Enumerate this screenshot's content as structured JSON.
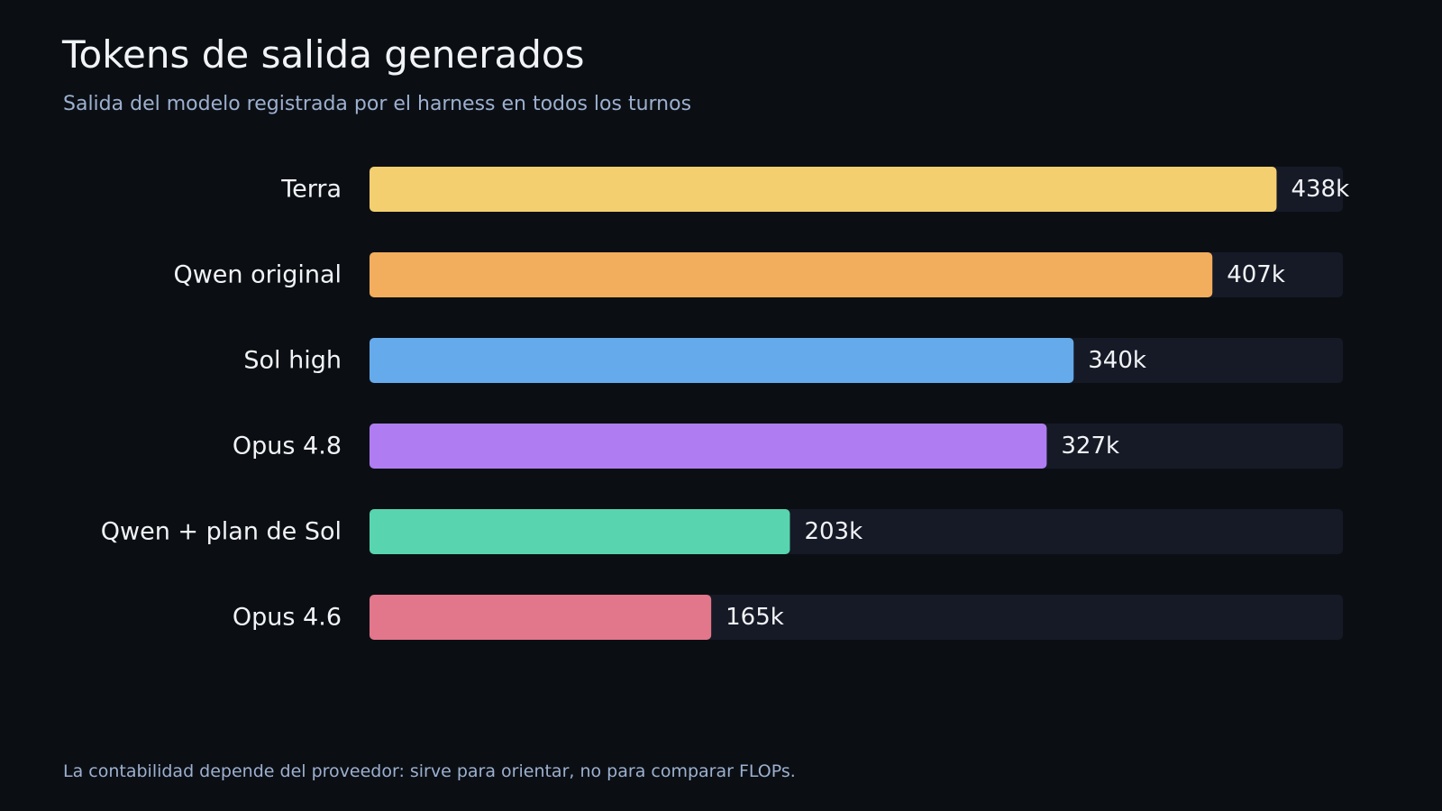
{
  "header": {
    "title": "Tokens de salida generados",
    "subtitle": "Salida del modelo registrada por el harness en todos los turnos"
  },
  "footnote": "La contabilidad depende del proveedor: sirve para orientar, no para comparar FLOPs.",
  "colors": {
    "background": "#0b0f14",
    "track": "#151a26",
    "text": "#f1f3f6",
    "muted": "#9db0cf"
  },
  "chart_data": {
    "type": "bar",
    "orientation": "horizontal",
    "title": "Tokens de salida generados",
    "subtitle": "Salida del modelo registrada por el harness en todos los turnos",
    "categories": [
      "Terra",
      "Qwen original",
      "Sol high",
      "Opus 4.8",
      "Qwen + plan de Sol",
      "Opus 4.6"
    ],
    "values": [
      438,
      407,
      340,
      327,
      203,
      165
    ],
    "value_labels": [
      "438k",
      "407k",
      "340k",
      "327k",
      "203k",
      "165k"
    ],
    "bar_colors": [
      "#f4cf6f",
      "#f2ad5d",
      "#65aaeb",
      "#b07cf2",
      "#58d5ae",
      "#e2768a"
    ],
    "xlim": [
      0,
      470
    ],
    "grid": false,
    "legend": "none"
  }
}
